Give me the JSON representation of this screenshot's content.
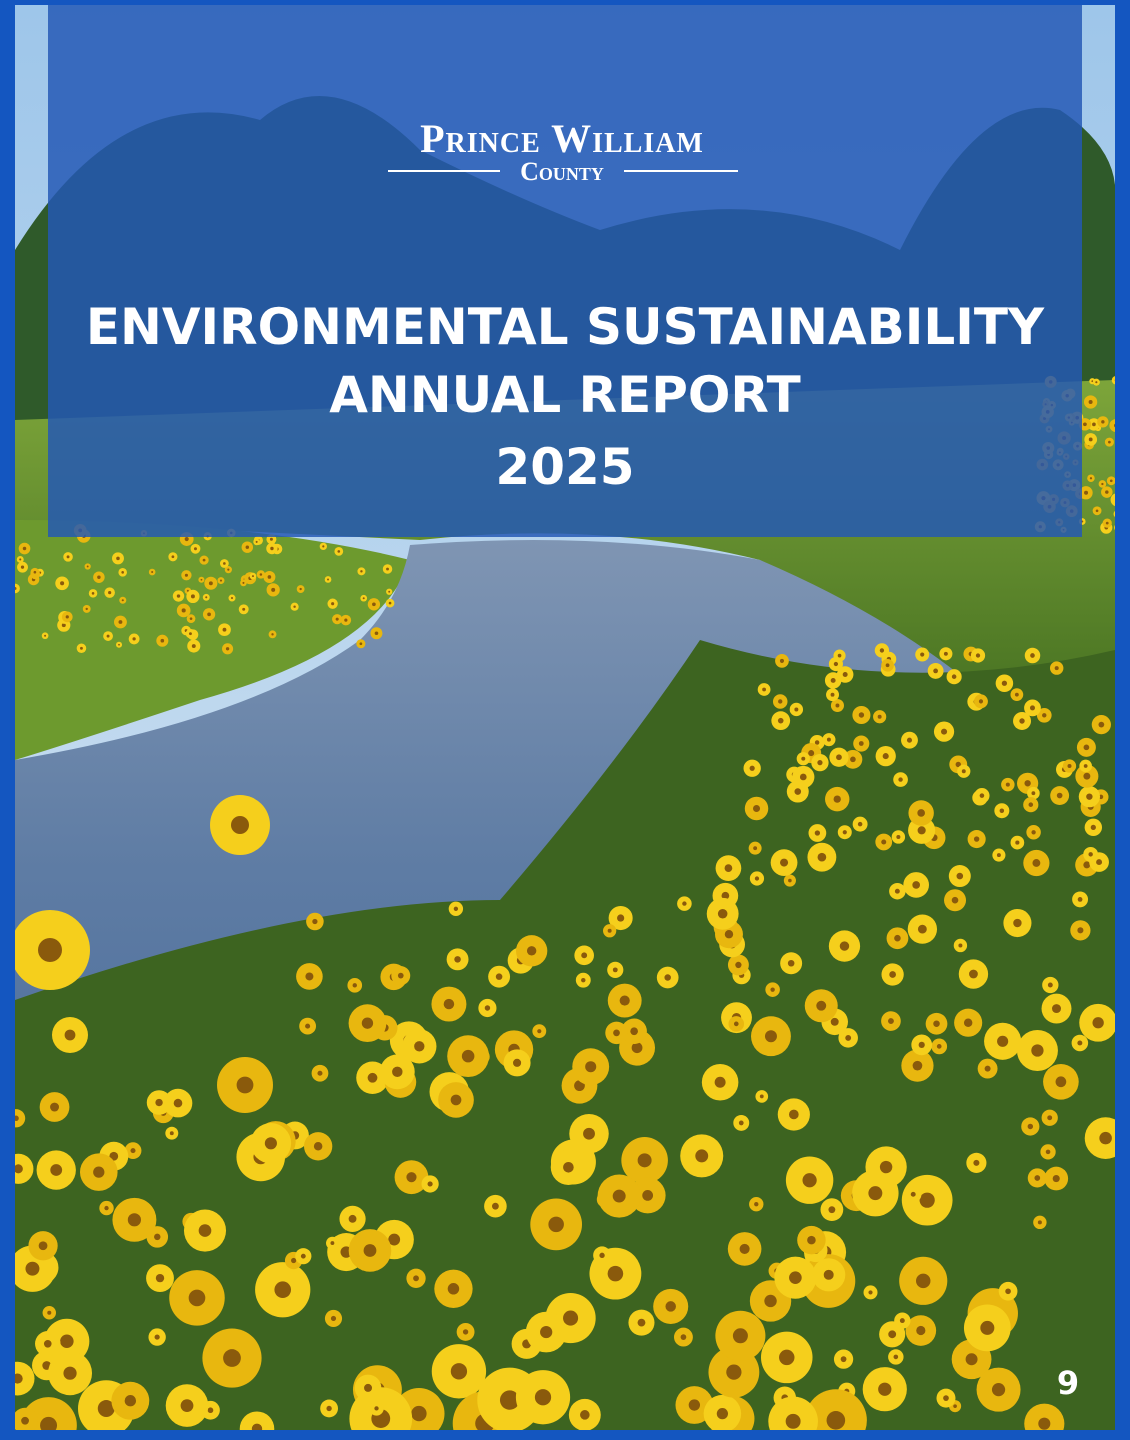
{
  "logo": {
    "name": "Prince William",
    "subname": "County"
  },
  "title": {
    "lines": [
      "ENVIRONMENTAL SUSTAINABILITY",
      "ANNUAL REPORT",
      "2025"
    ]
  },
  "page_number": "9"
}
